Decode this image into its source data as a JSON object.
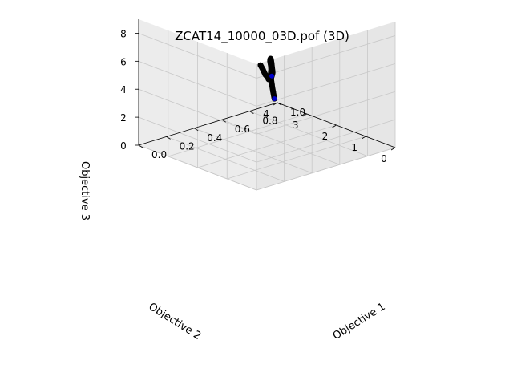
{
  "chart_data": {
    "type": "scatter",
    "projection": "3d",
    "title": "ZCAT14_10000_03D.pof (3D)",
    "xlabel": "Objective 1",
    "ylabel": "Objective 2",
    "zlabel": "Objective 3",
    "xlim": [
      0.0,
      1.0
    ],
    "ylim": [
      0,
      4
    ],
    "zlim": [
      0,
      9
    ],
    "xticks": [
      "0.0",
      "0.2",
      "0.4",
      "0.6",
      "0.8",
      "1.0"
    ],
    "yticks": [
      "0",
      "1",
      "2",
      "3",
      "4"
    ],
    "zticks": [
      "0",
      "2",
      "4",
      "6",
      "8"
    ],
    "grid": true,
    "point_color": "#000000",
    "highlight_color": "#0000cc",
    "series": [
      {
        "x": [
          0.05,
          0.1,
          0.16,
          0.23,
          0.3,
          0.38,
          0.45,
          0.52,
          0.58,
          0.64,
          0.7,
          0.76,
          0.82,
          0.87,
          0.91,
          0.95,
          0.98,
          1.0
        ],
        "y": [
          0.1,
          0.25,
          0.45,
          0.7,
          1.0,
          1.3,
          1.6,
          1.9,
          2.2,
          2.5,
          2.8,
          3.1,
          3.4,
          3.6,
          3.8,
          3.95,
          4.05,
          4.1
        ],
        "z": [
          8.7,
          8.1,
          7.4,
          6.8,
          6.2,
          5.8,
          5.5,
          5.3,
          5.2,
          5.1,
          4.9,
          4.6,
          4.0,
          3.2,
          2.4,
          1.5,
          0.8,
          0.2
        ]
      }
    ],
    "highlight_points": [
      {
        "x": 0.45,
        "y": 1.6,
        "z": 5.5
      },
      {
        "x": 1.0,
        "y": 4.1,
        "z": 0.2
      }
    ]
  }
}
